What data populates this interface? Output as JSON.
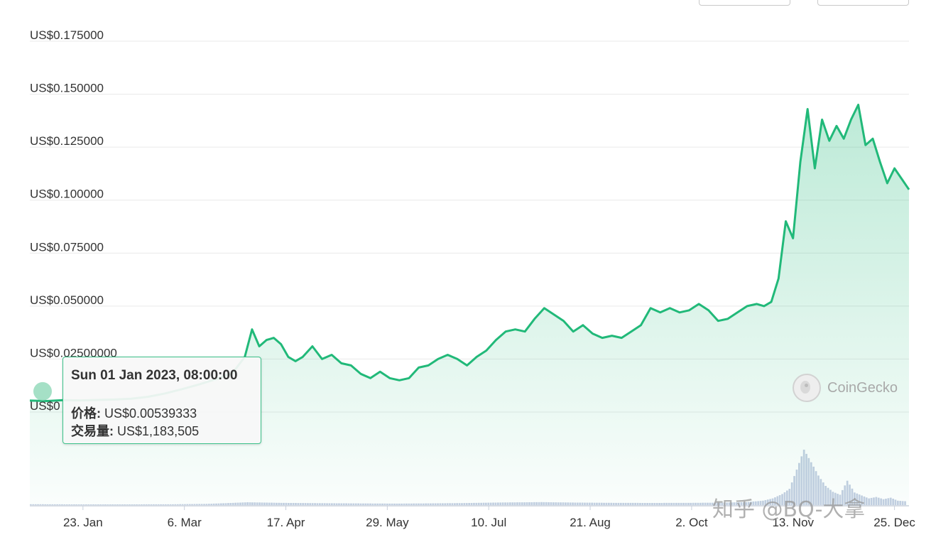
{
  "brand": {
    "name": "CoinGecko"
  },
  "watermark": "知乎 @BQ-大拿",
  "tooltip": {
    "title": "Sun 01 Jan 2023, 08:00:00",
    "price_label": "价格:",
    "price_value": "US$0.00539333",
    "volume_label": "交易量:",
    "volume_value": "US$1,183,505"
  },
  "colors": {
    "line": "#21b979",
    "area": "#21b979",
    "grid": "#e9e9e9",
    "volume": "#c4cfe2",
    "marker": "#8fd8b8"
  },
  "chart_data": {
    "type": "line",
    "title": "",
    "xlabel": "",
    "ylabel": "",
    "y_tick_labels": [
      "US$0.175000",
      "US$0.150000",
      "US$0.125000",
      "US$0.100000",
      "US$0.075000",
      "US$0.050000",
      "US$0.02500000",
      "US$0"
    ],
    "y_ticks": [
      0.175,
      0.15,
      0.125,
      0.1,
      0.075,
      0.05,
      0.025,
      0
    ],
    "ylim": [
      0,
      0.175
    ],
    "xlim": [
      "2023-01-01",
      "2023-12-31"
    ],
    "x_ticks": [
      "2023-01-23",
      "2023-03-06",
      "2023-04-17",
      "2023-05-29",
      "2023-07-10",
      "2023-08-21",
      "2023-10-02",
      "2023-11-13",
      "2023-12-25"
    ],
    "x_tick_labels": [
      "23. Jan",
      "6. Mar",
      "17. Apr",
      "29. May",
      "10. Jul",
      "21. Aug",
      "2. Oct",
      "13. Nov",
      "25. Dec"
    ],
    "grid": true,
    "series": [
      {
        "x": [
          "2023-01-01",
          "2023-01-08",
          "2023-01-15",
          "2023-01-22",
          "2023-01-29",
          "2023-02-05",
          "2023-02-12",
          "2023-02-19",
          "2023-02-26",
          "2023-03-05",
          "2023-03-12",
          "2023-03-19",
          "2023-03-26",
          "2023-03-31",
          "2023-04-03",
          "2023-04-06",
          "2023-04-09",
          "2023-04-12",
          "2023-04-15",
          "2023-04-18",
          "2023-04-21",
          "2023-04-24",
          "2023-04-28",
          "2023-05-02",
          "2023-05-06",
          "2023-05-10",
          "2023-05-14",
          "2023-05-18",
          "2023-05-22",
          "2023-05-26",
          "2023-05-30",
          "2023-06-03",
          "2023-06-07",
          "2023-06-11",
          "2023-06-15",
          "2023-06-19",
          "2023-06-23",
          "2023-06-27",
          "2023-07-01",
          "2023-07-05",
          "2023-07-09",
          "2023-07-13",
          "2023-07-17",
          "2023-07-21",
          "2023-07-25",
          "2023-07-29",
          "2023-08-02",
          "2023-08-06",
          "2023-08-10",
          "2023-08-14",
          "2023-08-18",
          "2023-08-22",
          "2023-08-26",
          "2023-08-30",
          "2023-09-03",
          "2023-09-07",
          "2023-09-11",
          "2023-09-15",
          "2023-09-19",
          "2023-09-23",
          "2023-09-27",
          "2023-10-01",
          "2023-10-05",
          "2023-10-09",
          "2023-10-13",
          "2023-10-17",
          "2023-10-21",
          "2023-10-25",
          "2023-10-29",
          "2023-11-01",
          "2023-11-04",
          "2023-11-07",
          "2023-11-10",
          "2023-11-13",
          "2023-11-16",
          "2023-11-19",
          "2023-11-22",
          "2023-11-25",
          "2023-11-28",
          "2023-12-01",
          "2023-12-04",
          "2023-12-07",
          "2023-12-10",
          "2023-12-13",
          "2023-12-16",
          "2023-12-19",
          "2023-12-22",
          "2023-12-25",
          "2023-12-28",
          "2023-12-31"
        ],
        "y": [
          0.0054,
          0.0052,
          0.0056,
          0.0055,
          0.0057,
          0.0059,
          0.0063,
          0.0072,
          0.0088,
          0.0108,
          0.013,
          0.0155,
          0.0185,
          0.026,
          0.039,
          0.031,
          0.034,
          0.035,
          0.032,
          0.026,
          0.024,
          0.026,
          0.031,
          0.025,
          0.027,
          0.023,
          0.022,
          0.018,
          0.016,
          0.019,
          0.016,
          0.015,
          0.016,
          0.021,
          0.022,
          0.025,
          0.027,
          0.025,
          0.022,
          0.026,
          0.029,
          0.034,
          0.038,
          0.039,
          0.038,
          0.044,
          0.049,
          0.046,
          0.043,
          0.038,
          0.041,
          0.037,
          0.035,
          0.036,
          0.035,
          0.038,
          0.041,
          0.049,
          0.047,
          0.049,
          0.047,
          0.048,
          0.051,
          0.048,
          0.043,
          0.044,
          0.047,
          0.05,
          0.051,
          0.05,
          0.052,
          0.063,
          0.09,
          0.082,
          0.118,
          0.143,
          0.115,
          0.138,
          0.128,
          0.135,
          0.129,
          0.138,
          0.145,
          0.126,
          0.129,
          0.118,
          0.108,
          0.115,
          0.11,
          0.105
        ]
      }
    ],
    "volume_series": {
      "x": [
        "2023-01-01",
        "2023-01-15",
        "2023-02-01",
        "2023-02-15",
        "2023-03-01",
        "2023-03-15",
        "2023-04-01",
        "2023-04-15",
        "2023-05-01",
        "2023-05-15",
        "2023-06-01",
        "2023-06-15",
        "2023-07-01",
        "2023-07-15",
        "2023-08-01",
        "2023-08-15",
        "2023-09-01",
        "2023-09-15",
        "2023-10-01",
        "2023-10-15",
        "2023-10-25",
        "2023-11-01",
        "2023-11-05",
        "2023-11-09",
        "2023-11-12",
        "2023-11-15",
        "2023-11-18",
        "2023-11-21",
        "2023-11-24",
        "2023-11-27",
        "2023-11-30",
        "2023-12-03",
        "2023-12-06",
        "2023-12-09",
        "2023-12-12",
        "2023-12-15",
        "2023-12-18",
        "2023-12-21",
        "2023-12-24",
        "2023-12-27",
        "2023-12-31"
      ],
      "y": [
        1183505,
        1000000,
        900000,
        1000000,
        1100000,
        1600000,
        3800000,
        3000000,
        2600000,
        2300000,
        2000000,
        2300000,
        2800000,
        3500000,
        4000000,
        3400000,
        3000000,
        2900000,
        3000000,
        3300000,
        4000000,
        6000000,
        9000000,
        15000000,
        22000000,
        48000000,
        75000000,
        58000000,
        40000000,
        26000000,
        18000000,
        14000000,
        33000000,
        17000000,
        13000000,
        9000000,
        11000000,
        8000000,
        10000000,
        6000000,
        5000000
      ]
    }
  }
}
